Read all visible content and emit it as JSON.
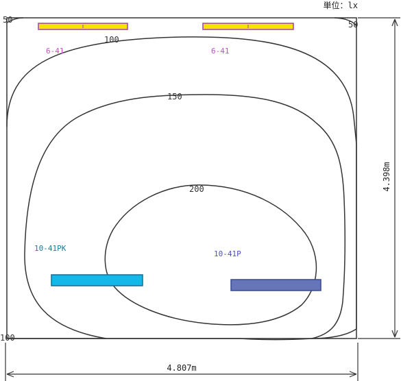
{
  "unit_label": "単位：lx",
  "dimensions": {
    "width": "4.807m",
    "height": "4.398m"
  },
  "contours": [
    {
      "value": "50",
      "value_right": "50"
    },
    {
      "value": "100"
    },
    {
      "value": "150"
    },
    {
      "value": "200"
    },
    {
      "value": "100"
    }
  ],
  "fixtures": [
    {
      "label": "6-41",
      "color": "#f5e400",
      "border": "#a040b0",
      "text_color": "#c050c0"
    },
    {
      "label": "6-41",
      "color": "#f5e400",
      "border": "#a040b0",
      "text_color": "#c050c0"
    },
    {
      "label": "10-41PK",
      "color": "#14b8e8",
      "border": "#1a6a90",
      "text_color": "#1a7a9a"
    },
    {
      "label": "10-41P",
      "color": "#6575b8",
      "border": "#3a4a90",
      "text_color": "#5050b8"
    }
  ]
}
